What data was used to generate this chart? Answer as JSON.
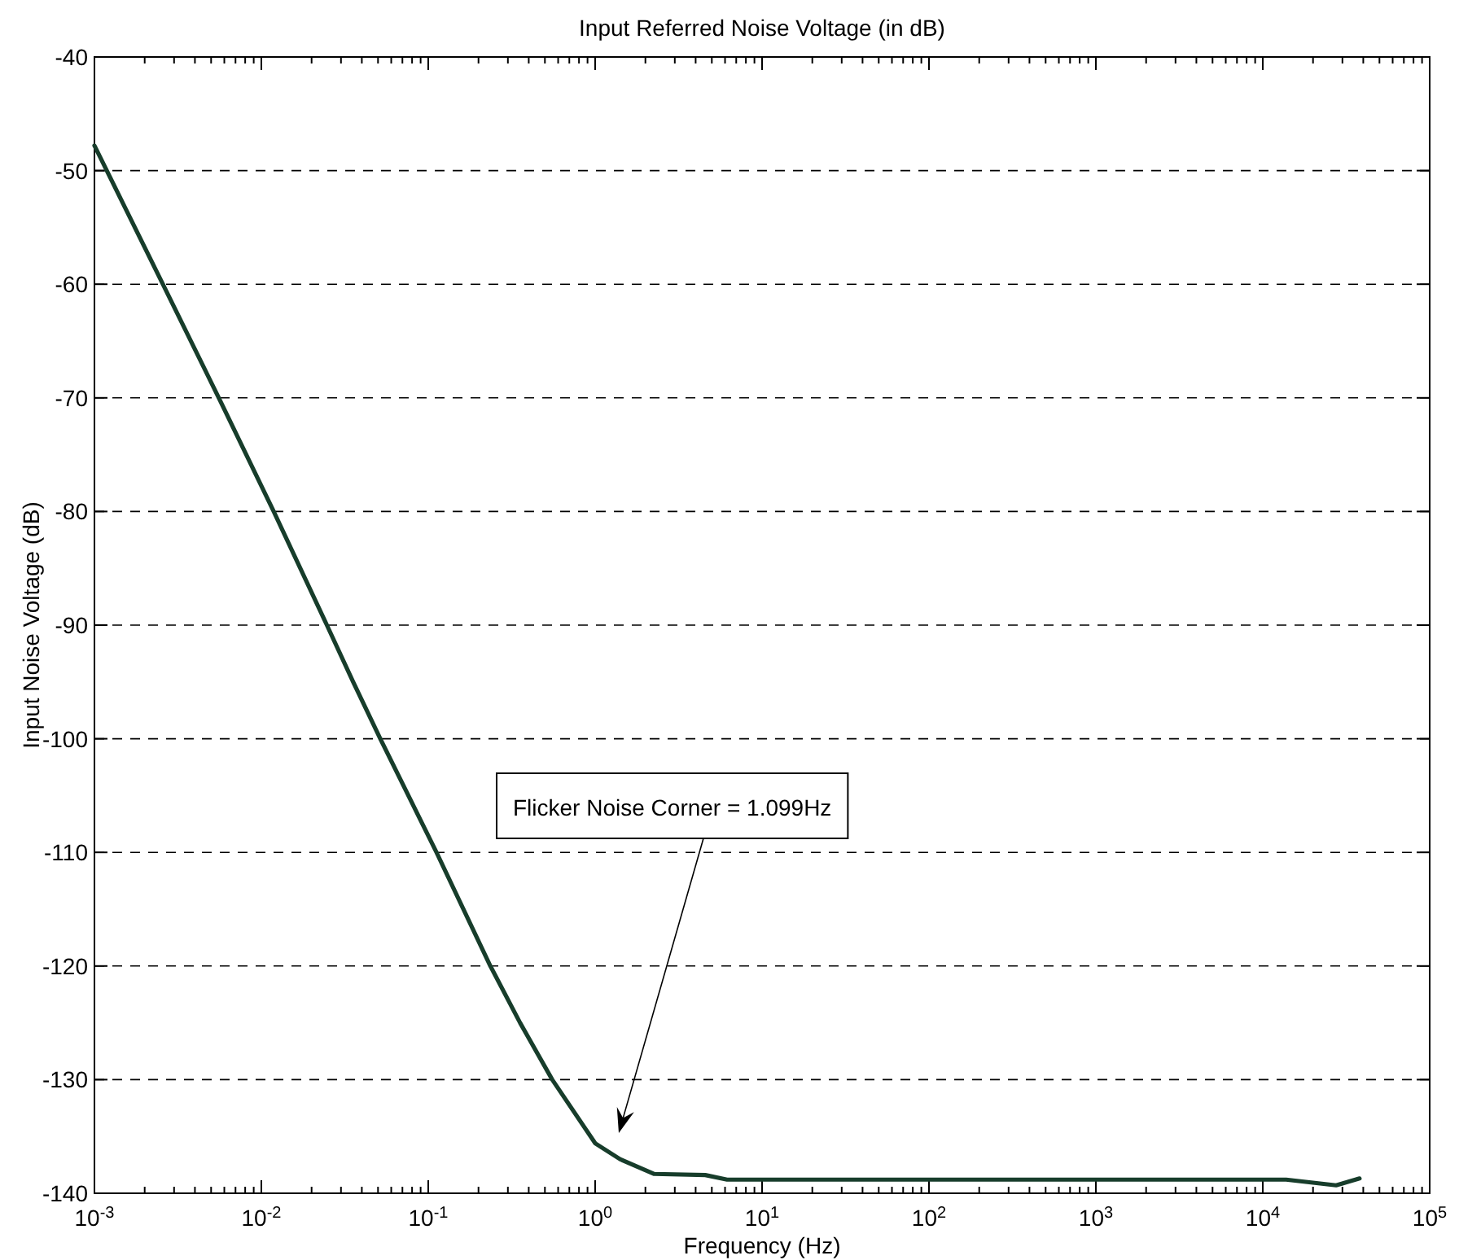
{
  "chart_data": {
    "type": "line",
    "title": "Input Referred Noise Voltage (in dB)",
    "xlabel": "Frequency (Hz)",
    "ylabel": "Input Noise Voltage (dB)",
    "log": "x",
    "grid": "y",
    "line_style": "solid",
    "marker": "none",
    "x": [
      0.001,
      0.00257,
      0.00556,
      0.01186,
      0.0247,
      0.0355,
      0.0516,
      0.112,
      0.2355,
      0.355,
      0.553,
      1,
      1.41,
      2.26,
      4.57,
      6.17,
      13800,
      27500,
      38000
    ],
    "series": [
      {
        "color": "#173d2b",
        "values": [
          -47.8,
          -60,
          -70,
          -80,
          -90,
          -95,
          -100,
          -110,
          -120,
          -125,
          -130,
          -135.6,
          -137,
          -138.3,
          -138.4,
          -138.8,
          -138.8,
          -139.3,
          -138.7
        ]
      }
    ],
    "xlim": [
      0.001,
      100000
    ],
    "ylim": [
      -140,
      -40
    ],
    "yticks": [
      -140,
      -130,
      -120,
      -110,
      -100,
      -90,
      -80,
      -70,
      -60,
      -50,
      -40
    ],
    "xticks": [
      {
        "value": 0.001,
        "label": "10$^{-3}$"
      },
      {
        "value": 0.01,
        "label": "10$^{-2}$"
      },
      {
        "value": 0.1,
        "label": "10$^{-1}$"
      },
      {
        "value": 1,
        "label": "10$^{0}$"
      },
      {
        "value": 10,
        "label": "10$^{1}$"
      },
      {
        "value": 100,
        "label": "10$^{2}$"
      },
      {
        "value": 1000,
        "label": "10$^{3}$"
      },
      {
        "value": 10000,
        "label": "10$^{4}$"
      },
      {
        "value": 100000,
        "label": "10$^{5}$"
      },
      {
        "value": 0.002,
        "label": null
      },
      {
        "value": 0.003,
        "label": null
      },
      {
        "value": 0.004,
        "label": null
      },
      {
        "value": 0.005,
        "label": null
      },
      {
        "value": 0.006,
        "label": null
      },
      {
        "value": 0.007,
        "label": null
      },
      {
        "value": 0.008,
        "label": null
      },
      {
        "value": 0.009,
        "label": null
      },
      {
        "value": 0.02,
        "label": null
      },
      {
        "value": 0.03,
        "label": null
      },
      {
        "value": 0.04,
        "label": null
      },
      {
        "value": 0.05,
        "label": null
      },
      {
        "value": 0.06,
        "label": null
      },
      {
        "value": 0.07,
        "label": null
      },
      {
        "value": 0.08,
        "label": null
      },
      {
        "value": 0.09,
        "label": null
      },
      {
        "value": 0.2,
        "label": null
      },
      {
        "value": 0.3,
        "label": null
      },
      {
        "value": 0.4,
        "label": null
      },
      {
        "value": 0.5,
        "label": null
      },
      {
        "value": 0.6,
        "label": null
      },
      {
        "value": 0.7,
        "label": null
      },
      {
        "value": 0.8,
        "label": null
      },
      {
        "value": 0.9,
        "label": null
      },
      {
        "value": 2,
        "label": null
      },
      {
        "value": 3,
        "label": null
      },
      {
        "value": 4,
        "label": null
      },
      {
        "value": 5,
        "label": null
      },
      {
        "value": 6,
        "label": null
      },
      {
        "value": 7,
        "label": null
      },
      {
        "value": 8,
        "label": null
      },
      {
        "value": 9,
        "label": null
      },
      {
        "value": 20,
        "label": null
      },
      {
        "value": 30,
        "label": null
      },
      {
        "value": 40,
        "label": null
      },
      {
        "value": 50,
        "label": null
      },
      {
        "value": 60,
        "label": null
      },
      {
        "value": 70,
        "label": null
      },
      {
        "value": 80,
        "label": null
      },
      {
        "value": 90,
        "label": null
      },
      {
        "value": 200,
        "label": null
      },
      {
        "value": 300,
        "label": null
      },
      {
        "value": 400,
        "label": null
      },
      {
        "value": 500,
        "label": null
      },
      {
        "value": 600,
        "label": null
      },
      {
        "value": 700,
        "label": null
      },
      {
        "value": 800,
        "label": null
      },
      {
        "value": 900,
        "label": null
      },
      {
        "value": 2000,
        "label": null
      },
      {
        "value": 3000,
        "label": null
      },
      {
        "value": 4000,
        "label": null
      },
      {
        "value": 5000,
        "label": null
      },
      {
        "value": 6000,
        "label": null
      },
      {
        "value": 7000,
        "label": null
      },
      {
        "value": 8000,
        "label": null
      },
      {
        "value": 9000,
        "label": null
      },
      {
        "value": 20000,
        "label": null
      },
      {
        "value": 30000,
        "label": null
      },
      {
        "value": 40000,
        "label": null
      },
      {
        "value": 50000,
        "label": null
      },
      {
        "value": 60000,
        "label": null
      },
      {
        "value": 70000,
        "label": null
      },
      {
        "value": 80000,
        "label": null
      },
      {
        "value": 90000,
        "label": null
      }
    ],
    "annotations": [
      "Flicker Noise Corner = 1.099Hz"
    ]
  }
}
